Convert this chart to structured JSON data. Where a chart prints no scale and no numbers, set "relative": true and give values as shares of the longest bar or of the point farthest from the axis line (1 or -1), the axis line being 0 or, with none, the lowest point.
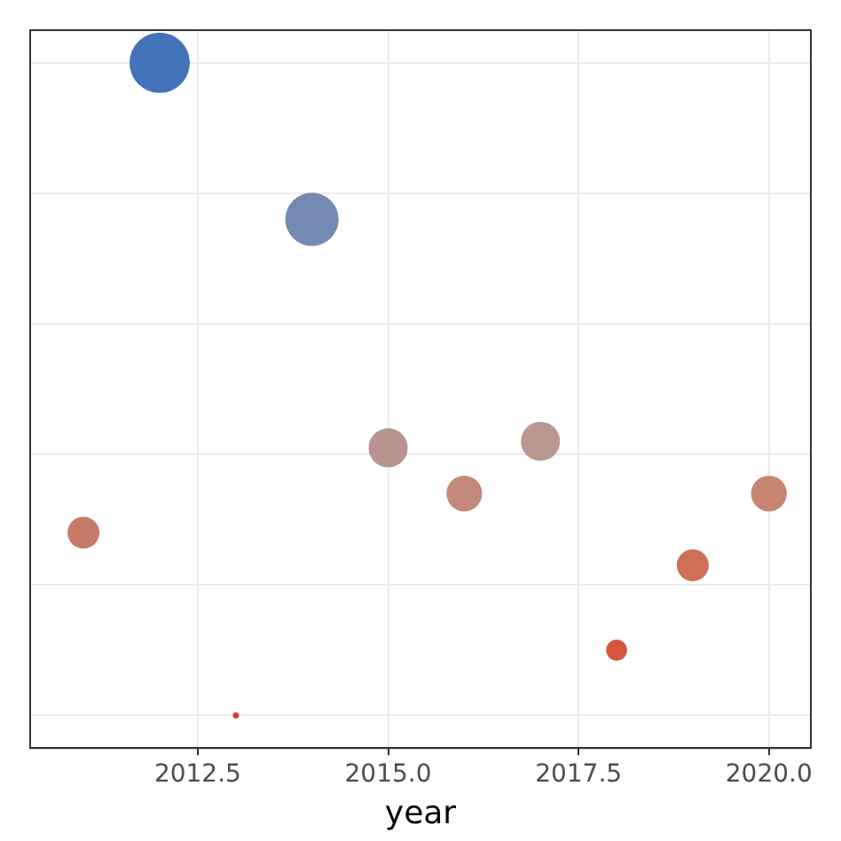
{
  "chart_data": {
    "type": "bubble",
    "xlabel": "year",
    "relative": true,
    "grid": true,
    "x": [
      2011,
      2012,
      2013,
      2014,
      2015,
      2016,
      2017,
      2018,
      2019,
      2020
    ],
    "values": [
      0.28,
      1,
      0,
      0.76,
      0.41,
      0.34,
      0.42,
      0.1,
      0.23,
      0.34
    ],
    "sizes": [
      0.28,
      1,
      0.01,
      0.78,
      0.42,
      0.35,
      0.42,
      0.12,
      0.28,
      0.35
    ],
    "colors": [
      "#c77b68",
      "#4472b8",
      "#d63d2e",
      "#7489b0",
      "#b89490",
      "#c1897b",
      "#b9978f",
      "#d6553f",
      "#cf6f58",
      "#c58571"
    ],
    "xlim": [
      2010.3,
      2020.55
    ],
    "xticks": [
      2012.5,
      {
        "value": 2015,
        "label": "2015.0"
      },
      2017.5,
      {
        "value": 2020,
        "label": "2020.0"
      }
    ]
  }
}
